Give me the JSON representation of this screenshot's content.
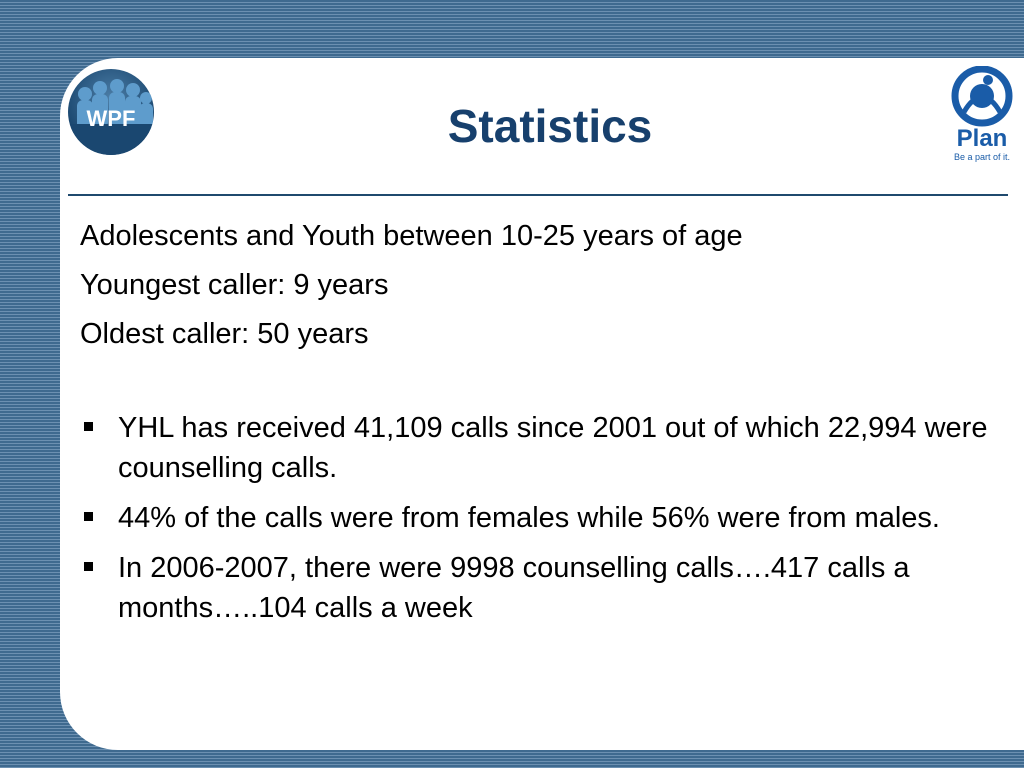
{
  "slide": {
    "title": "Statistics",
    "intro_lines": [
      "Adolescents and Youth between 10-25 years of age",
      "Youngest caller: 9 years",
      "Oldest caller: 50 years"
    ],
    "bullets": [
      "YHL has received 41,109 calls since 2001 out of which 22,994 were counselling calls.",
      "44% of the calls were from females while 56% were from males.",
      "In 2006-2007, there were 9998 counselling calls….417 calls a months…..104 calls a week"
    ]
  },
  "logos": {
    "left": {
      "text": "WPF",
      "icon": "wpf-logo-icon"
    },
    "right": {
      "text": "Plan",
      "tagline": "Be a part of it.",
      "icon": "plan-logo-icon"
    }
  },
  "colors": {
    "background": "#3f6a8f",
    "title": "#17406d",
    "rule": "#1f4a6e",
    "plan_blue": "#1a5ca8"
  }
}
